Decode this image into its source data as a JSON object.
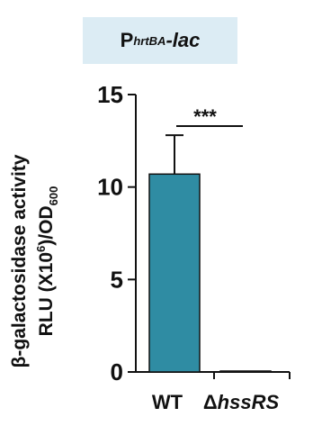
{
  "chart_data": {
    "type": "bar",
    "title": {
      "main": "P",
      "sub": "hrtBA",
      "suffix": "-lac"
    },
    "ylabel_line1": "β-galactosidase activity",
    "ylabel_line2": {
      "prefix": "RLU (X10",
      "sup": "6",
      "mid": ")/OD",
      "sub": "600"
    },
    "categories": [
      {
        "main": "WT",
        "italic": ""
      },
      {
        "main": "Δ",
        "italic": "hssRS"
      }
    ],
    "values": [
      10.7,
      0.05
    ],
    "errors": [
      2.1,
      0
    ],
    "ylim": [
      0,
      15
    ],
    "yticks": [
      0,
      5,
      10,
      15
    ],
    "significance": "***",
    "bar_color": "#2f8ca3",
    "grid": false
  }
}
